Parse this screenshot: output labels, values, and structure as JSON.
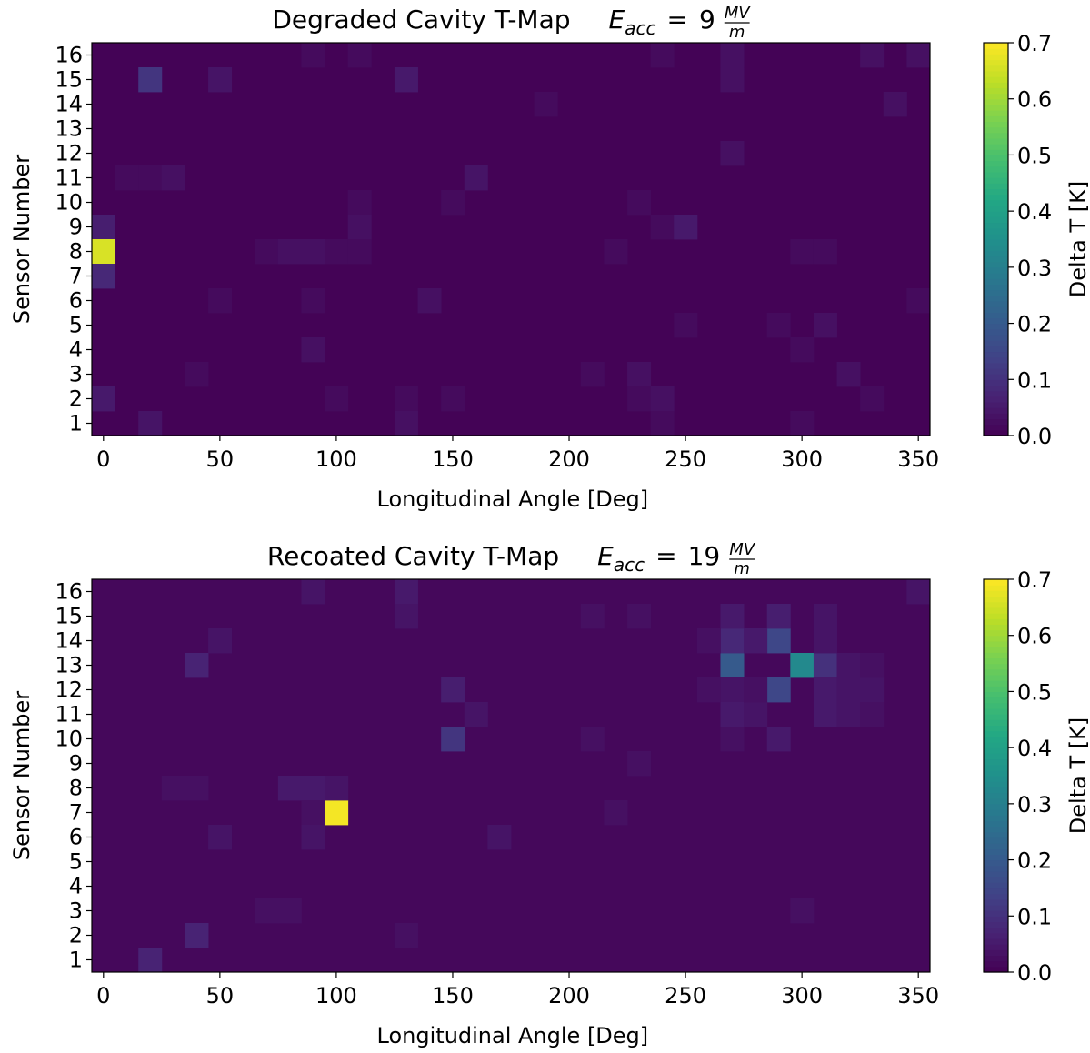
{
  "chart_data": [
    {
      "type": "heatmap",
      "title": "Degraded Cavity T-Map",
      "title_eq": {
        "var": "E",
        "sub": "acc",
        "op": "=",
        "value": "9",
        "num": "MV",
        "den": "m"
      },
      "xlabel": "Longitudinal Angle [Deg]",
      "ylabel": "Sensor Number",
      "colorbar_label": "Delta T [K]",
      "colormap": "viridis",
      "vmin": 0.0,
      "vmax": 0.7,
      "x_step_deg": 10,
      "xlim": [
        -5,
        355
      ],
      "ylim": [
        0.5,
        16.5
      ],
      "x_ticks": [
        0,
        50,
        100,
        150,
        200,
        250,
        300,
        350
      ],
      "y_ticks": [
        1,
        2,
        3,
        4,
        5,
        6,
        7,
        8,
        9,
        10,
        11,
        12,
        13,
        14,
        15,
        16
      ],
      "cb_ticks": [
        "0.0",
        "0.1",
        "0.2",
        "0.3",
        "0.4",
        "0.5",
        "0.6",
        "0.7"
      ],
      "background": 0.005,
      "cells": [
        {
          "angle": 20,
          "sensor": 15,
          "dt": 0.11
        },
        {
          "angle": 50,
          "sensor": 15,
          "dt": 0.04
        },
        {
          "angle": 130,
          "sensor": 15,
          "dt": 0.05
        },
        {
          "angle": 270,
          "sensor": 15,
          "dt": 0.03
        },
        {
          "angle": 90,
          "sensor": 16,
          "dt": 0.02
        },
        {
          "angle": 110,
          "sensor": 16,
          "dt": 0.02
        },
        {
          "angle": 240,
          "sensor": 16,
          "dt": 0.02
        },
        {
          "angle": 270,
          "sensor": 16,
          "dt": 0.03
        },
        {
          "angle": 330,
          "sensor": 16,
          "dt": 0.03
        },
        {
          "angle": 350,
          "sensor": 16,
          "dt": 0.03
        },
        {
          "angle": 190,
          "sensor": 14,
          "dt": 0.02
        },
        {
          "angle": 340,
          "sensor": 14,
          "dt": 0.03
        },
        {
          "angle": 270,
          "sensor": 12,
          "dt": 0.03
        },
        {
          "angle": 10,
          "sensor": 11,
          "dt": 0.02
        },
        {
          "angle": 20,
          "sensor": 11,
          "dt": 0.02
        },
        {
          "angle": 30,
          "sensor": 11,
          "dt": 0.03
        },
        {
          "angle": 160,
          "sensor": 11,
          "dt": 0.04
        },
        {
          "angle": 110,
          "sensor": 10,
          "dt": 0.02
        },
        {
          "angle": 150,
          "sensor": 10,
          "dt": 0.02
        },
        {
          "angle": 230,
          "sensor": 10,
          "dt": 0.02
        },
        {
          "angle": 0,
          "sensor": 9,
          "dt": 0.06
        },
        {
          "angle": 110,
          "sensor": 9,
          "dt": 0.03
        },
        {
          "angle": 240,
          "sensor": 9,
          "dt": 0.02
        },
        {
          "angle": 250,
          "sensor": 9,
          "dt": 0.05
        },
        {
          "angle": 0,
          "sensor": 8,
          "dt": 0.66
        },
        {
          "angle": 70,
          "sensor": 8,
          "dt": 0.02
        },
        {
          "angle": 80,
          "sensor": 8,
          "dt": 0.03
        },
        {
          "angle": 90,
          "sensor": 8,
          "dt": 0.03
        },
        {
          "angle": 100,
          "sensor": 8,
          "dt": 0.02
        },
        {
          "angle": 110,
          "sensor": 8,
          "dt": 0.02
        },
        {
          "angle": 220,
          "sensor": 8,
          "dt": 0.02
        },
        {
          "angle": 300,
          "sensor": 8,
          "dt": 0.02
        },
        {
          "angle": 310,
          "sensor": 8,
          "dt": 0.02
        },
        {
          "angle": 0,
          "sensor": 7,
          "dt": 0.08
        },
        {
          "angle": 50,
          "sensor": 6,
          "dt": 0.02
        },
        {
          "angle": 90,
          "sensor": 6,
          "dt": 0.02
        },
        {
          "angle": 140,
          "sensor": 6,
          "dt": 0.03
        },
        {
          "angle": 350,
          "sensor": 6,
          "dt": 0.02
        },
        {
          "angle": 250,
          "sensor": 5,
          "dt": 0.02
        },
        {
          "angle": 290,
          "sensor": 5,
          "dt": 0.02
        },
        {
          "angle": 310,
          "sensor": 5,
          "dt": 0.03
        },
        {
          "angle": 90,
          "sensor": 4,
          "dt": 0.03
        },
        {
          "angle": 300,
          "sensor": 4,
          "dt": 0.02
        },
        {
          "angle": 40,
          "sensor": 3,
          "dt": 0.02
        },
        {
          "angle": 210,
          "sensor": 3,
          "dt": 0.02
        },
        {
          "angle": 230,
          "sensor": 3,
          "dt": 0.03
        },
        {
          "angle": 320,
          "sensor": 3,
          "dt": 0.03
        },
        {
          "angle": 0,
          "sensor": 2,
          "dt": 0.05
        },
        {
          "angle": 100,
          "sensor": 2,
          "dt": 0.02
        },
        {
          "angle": 130,
          "sensor": 2,
          "dt": 0.02
        },
        {
          "angle": 150,
          "sensor": 2,
          "dt": 0.02
        },
        {
          "angle": 230,
          "sensor": 2,
          "dt": 0.02
        },
        {
          "angle": 240,
          "sensor": 2,
          "dt": 0.03
        },
        {
          "angle": 330,
          "sensor": 2,
          "dt": 0.02
        },
        {
          "angle": 20,
          "sensor": 1,
          "dt": 0.04
        },
        {
          "angle": 130,
          "sensor": 1,
          "dt": 0.03
        },
        {
          "angle": 240,
          "sensor": 1,
          "dt": 0.02
        },
        {
          "angle": 300,
          "sensor": 1,
          "dt": 0.02
        }
      ]
    },
    {
      "type": "heatmap",
      "title": "Recoated Cavity T-Map",
      "title_eq": {
        "var": "E",
        "sub": "acc",
        "op": "=",
        "value": "19",
        "num": "MV",
        "den": "m"
      },
      "xlabel": "Longitudinal Angle [Deg]",
      "ylabel": "Sensor Number",
      "colorbar_label": "Delta T [K]",
      "colormap": "viridis",
      "vmin": 0.0,
      "vmax": 0.7,
      "x_step_deg": 10,
      "xlim": [
        -5,
        355
      ],
      "ylim": [
        0.5,
        16.5
      ],
      "x_ticks": [
        0,
        50,
        100,
        150,
        200,
        250,
        300,
        350
      ],
      "y_ticks": [
        1,
        2,
        3,
        4,
        5,
        6,
        7,
        8,
        9,
        10,
        11,
        12,
        13,
        14,
        15,
        16
      ],
      "cb_ticks": [
        "0.0",
        "0.1",
        "0.2",
        "0.3",
        "0.4",
        "0.5",
        "0.6",
        "0.7"
      ],
      "background": 0.015,
      "cells": [
        {
          "angle": 100,
          "sensor": 7,
          "dt": 0.69
        },
        {
          "angle": 300,
          "sensor": 13,
          "dt": 0.33
        },
        {
          "angle": 270,
          "sensor": 13,
          "dt": 0.2
        },
        {
          "angle": 290,
          "sensor": 14,
          "dt": 0.15
        },
        {
          "angle": 290,
          "sensor": 12,
          "dt": 0.15
        },
        {
          "angle": 310,
          "sensor": 13,
          "dt": 0.1
        },
        {
          "angle": 270,
          "sensor": 14,
          "dt": 0.08
        },
        {
          "angle": 280,
          "sensor": 14,
          "dt": 0.05
        },
        {
          "angle": 290,
          "sensor": 15,
          "dt": 0.06
        },
        {
          "angle": 270,
          "sensor": 15,
          "dt": 0.05
        },
        {
          "angle": 310,
          "sensor": 15,
          "dt": 0.04
        },
        {
          "angle": 310,
          "sensor": 14,
          "dt": 0.04
        },
        {
          "angle": 310,
          "sensor": 12,
          "dt": 0.05
        },
        {
          "angle": 310,
          "sensor": 11,
          "dt": 0.05
        },
        {
          "angle": 320,
          "sensor": 12,
          "dt": 0.04
        },
        {
          "angle": 320,
          "sensor": 11,
          "dt": 0.04
        },
        {
          "angle": 330,
          "sensor": 12,
          "dt": 0.04
        },
        {
          "angle": 330,
          "sensor": 11,
          "dt": 0.03
        },
        {
          "angle": 320,
          "sensor": 13,
          "dt": 0.04
        },
        {
          "angle": 270,
          "sensor": 12,
          "dt": 0.04
        },
        {
          "angle": 270,
          "sensor": 11,
          "dt": 0.05
        },
        {
          "angle": 280,
          "sensor": 11,
          "dt": 0.04
        },
        {
          "angle": 260,
          "sensor": 12,
          "dt": 0.03
        },
        {
          "angle": 260,
          "sensor": 14,
          "dt": 0.03
        },
        {
          "angle": 280,
          "sensor": 12,
          "dt": 0.03
        },
        {
          "angle": 290,
          "sensor": 10,
          "dt": 0.05
        },
        {
          "angle": 270,
          "sensor": 10,
          "dt": 0.03
        },
        {
          "angle": 150,
          "sensor": 10,
          "dt": 0.11
        },
        {
          "angle": 150,
          "sensor": 12,
          "dt": 0.06
        },
        {
          "angle": 160,
          "sensor": 11,
          "dt": 0.04
        },
        {
          "angle": 40,
          "sensor": 13,
          "dt": 0.07
        },
        {
          "angle": 50,
          "sensor": 14,
          "dt": 0.04
        },
        {
          "angle": 90,
          "sensor": 16,
          "dt": 0.04
        },
        {
          "angle": 130,
          "sensor": 16,
          "dt": 0.05
        },
        {
          "angle": 130,
          "sensor": 15,
          "dt": 0.04
        },
        {
          "angle": 350,
          "sensor": 16,
          "dt": 0.04
        },
        {
          "angle": 80,
          "sensor": 8,
          "dt": 0.05
        },
        {
          "angle": 90,
          "sensor": 8,
          "dt": 0.05
        },
        {
          "angle": 100,
          "sensor": 8,
          "dt": 0.04
        },
        {
          "angle": 90,
          "sensor": 7,
          "dt": 0.03
        },
        {
          "angle": 90,
          "sensor": 6,
          "dt": 0.04
        },
        {
          "angle": 20,
          "sensor": 1,
          "dt": 0.07
        },
        {
          "angle": 40,
          "sensor": 2,
          "dt": 0.07
        },
        {
          "angle": 170,
          "sensor": 6,
          "dt": 0.04
        },
        {
          "angle": 210,
          "sensor": 10,
          "dt": 0.03
        },
        {
          "angle": 300,
          "sensor": 3,
          "dt": 0.03
        },
        {
          "angle": 80,
          "sensor": 3,
          "dt": 0.03
        },
        {
          "angle": 70,
          "sensor": 3,
          "dt": 0.03
        },
        {
          "angle": 130,
          "sensor": 2,
          "dt": 0.03
        },
        {
          "angle": 30,
          "sensor": 8,
          "dt": 0.03
        },
        {
          "angle": 40,
          "sensor": 8,
          "dt": 0.03
        },
        {
          "angle": 50,
          "sensor": 6,
          "dt": 0.04
        },
        {
          "angle": 210,
          "sensor": 15,
          "dt": 0.03
        },
        {
          "angle": 230,
          "sensor": 15,
          "dt": 0.03
        },
        {
          "angle": 330,
          "sensor": 13,
          "dt": 0.03
        },
        {
          "angle": 220,
          "sensor": 7,
          "dt": 0.03
        },
        {
          "angle": 230,
          "sensor": 9,
          "dt": 0.03
        }
      ]
    }
  ]
}
